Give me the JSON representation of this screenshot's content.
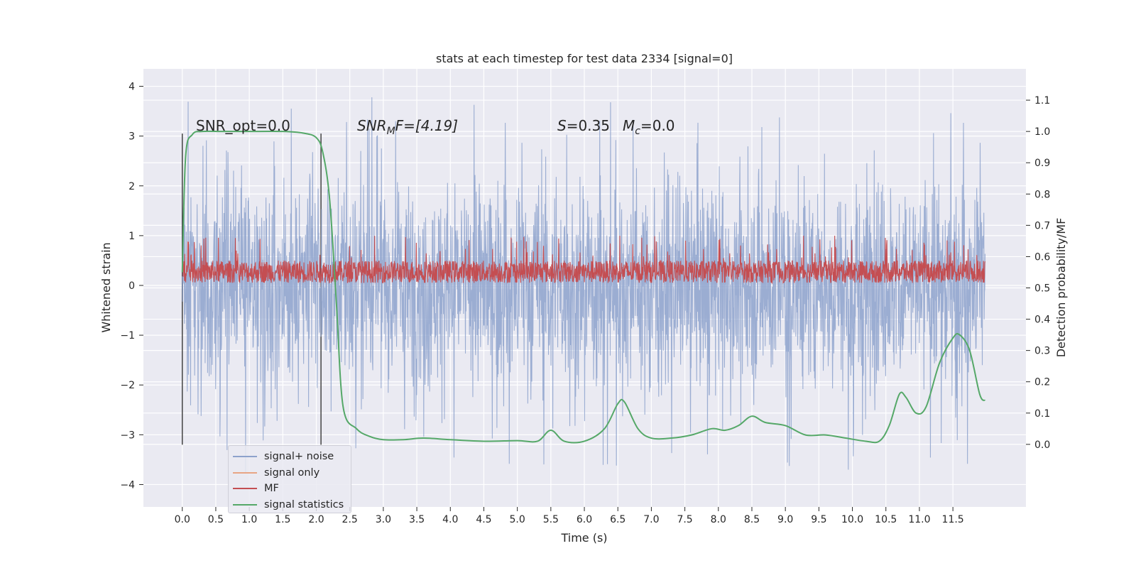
{
  "chart_data": {
    "type": "line",
    "title": "stats at each timestep for test data 2334 [signal=0]",
    "xlabel": "Time (s)",
    "ylabel_left": "Whitened strain",
    "ylabel_right": "Detection probability/MF",
    "xlim": [
      -0.58,
      12.59
    ],
    "ylim_left": [
      -4.45,
      4.35
    ],
    "ylim_right": [
      -0.2,
      1.2
    ],
    "x_ticks": [
      "0.0",
      "0.5",
      "1.0",
      "1.5",
      "2.0",
      "2.5",
      "3.0",
      "3.5",
      "4.0",
      "4.5",
      "5.0",
      "5.5",
      "6.0",
      "6.5",
      "7.0",
      "7.5",
      "8.0",
      "8.5",
      "9.0",
      "9.5",
      "10.0",
      "10.5",
      "11.0",
      "11.5"
    ],
    "y_ticks_left": [
      "−4",
      "−3",
      "−2",
      "−1",
      "0",
      "1",
      "2",
      "3",
      "4"
    ],
    "y_ticks_right": [
      "0.0",
      "0.1",
      "0.2",
      "0.3",
      "0.4",
      "0.5",
      "0.6",
      "0.7",
      "0.8",
      "0.9",
      "1.0",
      "1.1"
    ],
    "grid": true,
    "legend_position": "lower-left",
    "annotations": {
      "snr_opt": "SNR_opt=0.0",
      "snr_mf": "SNR",
      "snr_mf_sub": "M",
      "snr_mf_tail": "F=[4.19]",
      "s_label": "S",
      "s_value": "=0.35",
      "mc_label": "M",
      "mc_sub": "c",
      "mc_value": "=0.0"
    },
    "vertical_markers_x": [
      0.0,
      2.07
    ],
    "series": [
      {
        "name": "signal+ noise",
        "color": "#8da2cc",
        "description_values": "dense noise, approx range -4.1 to 3.9",
        "x_range": [
          0.0,
          11.98
        ],
        "envelope": {
          "typical_max": 2.3,
          "typical_min": -2.3,
          "peak_max": 3.9,
          "peak_min": -4.1
        }
      },
      {
        "name": "signal only",
        "color": "#e8a584",
        "values": []
      },
      {
        "name": "MF",
        "color": "#c44e52",
        "x_range": [
          0.0,
          11.98
        ],
        "envelope": {
          "typical_max": 0.5,
          "typical_min": 0.05,
          "peak_max": 1.0
        }
      },
      {
        "name": "signal statistics",
        "color": "#55a868",
        "axis": "right",
        "x": [
          0.0,
          0.05,
          0.15,
          0.3,
          0.6,
          1.0,
          1.5,
          1.8,
          2.0,
          2.1,
          2.2,
          2.3,
          2.4,
          2.6,
          2.8,
          3.0,
          3.3,
          3.6,
          4.0,
          4.5,
          5.0,
          5.3,
          5.5,
          5.7,
          6.0,
          6.3,
          6.5,
          6.6,
          6.8,
          7.0,
          7.3,
          7.6,
          7.9,
          8.1,
          8.3,
          8.5,
          8.7,
          9.0,
          9.3,
          9.6,
          9.9,
          10.2,
          10.4,
          10.55,
          10.7,
          10.8,
          10.95,
          11.1,
          11.3,
          11.5,
          11.6,
          11.75,
          11.9,
          11.98
        ],
        "y": [
          0.55,
          0.92,
          0.99,
          1.0,
          1.0,
          1.0,
          1.0,
          0.995,
          0.98,
          0.93,
          0.78,
          0.45,
          0.12,
          0.05,
          0.025,
          0.015,
          0.015,
          0.02,
          0.015,
          0.01,
          0.012,
          0.01,
          0.045,
          0.01,
          0.01,
          0.05,
          0.13,
          0.135,
          0.05,
          0.02,
          0.02,
          0.03,
          0.05,
          0.045,
          0.06,
          0.09,
          0.07,
          0.06,
          0.03,
          0.03,
          0.02,
          0.01,
          0.01,
          0.06,
          0.16,
          0.15,
          0.1,
          0.12,
          0.26,
          0.34,
          0.35,
          0.3,
          0.16,
          0.14
        ]
      }
    ]
  }
}
